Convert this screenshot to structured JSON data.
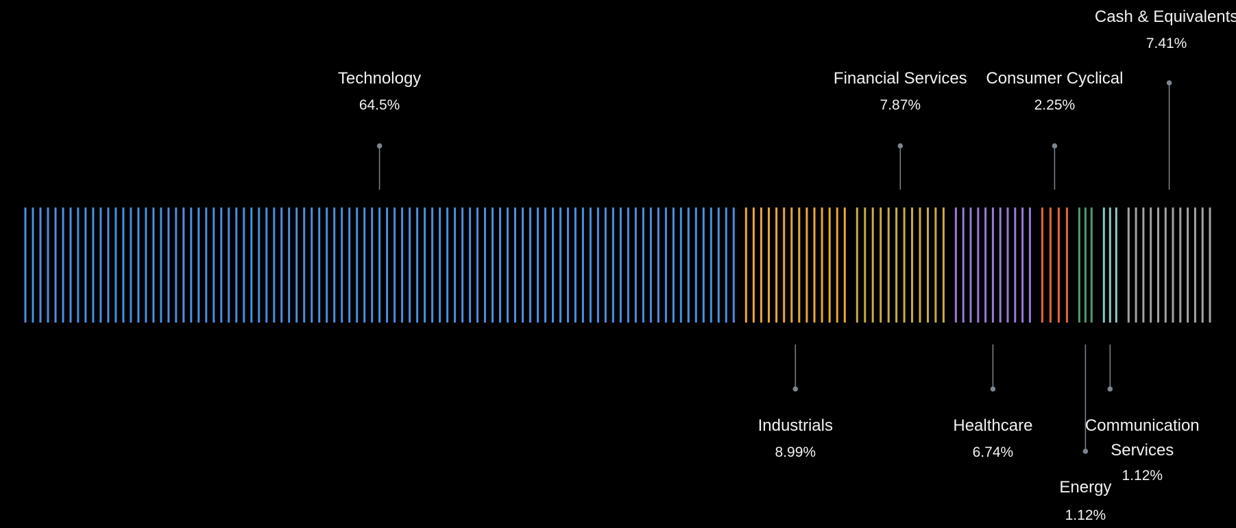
{
  "chart_data": {
    "type": "bar",
    "chart_style": "stacked-barcode",
    "title": "",
    "colors": {
      "background": "#000000",
      "text": "#f2f2f2",
      "leader": "#7d8590"
    },
    "series": [
      {
        "name": "Technology",
        "value_label": "64.5%",
        "value": 64.5,
        "color": "#4a8fe0",
        "label_side": "above",
        "label_level": 1
      },
      {
        "name": "Industrials",
        "value_label": "8.99%",
        "value": 8.99,
        "color": "#e8a838",
        "label_side": "below",
        "label_level": 1
      },
      {
        "name": "Financial Services",
        "value_label": "7.87%",
        "value": 7.87,
        "color": "#c9ad48",
        "label_side": "above",
        "label_level": 1
      },
      {
        "name": "Healthcare",
        "value_label": "6.74%",
        "value": 6.74,
        "color": "#9b7ad6",
        "label_side": "below",
        "label_level": 1
      },
      {
        "name": "Consumer Cyclical",
        "value_label": "2.25%",
        "value": 2.25,
        "color": "#e8663a",
        "label_side": "above",
        "label_level": 1
      },
      {
        "name": "Energy",
        "value_label": "1.12%",
        "value": 1.12,
        "color": "#4f9a6e",
        "label_side": "below",
        "label_level": 2
      },
      {
        "name": "Communication Services",
        "name_lines": [
          "Communication",
          "Services"
        ],
        "value_label": "1.12%",
        "value": 1.12,
        "color": "#8cc8c8",
        "label_side": "below",
        "label_level": 1
      },
      {
        "name": "Cash & Equivalents",
        "value_label": "7.41%",
        "value": 7.41,
        "color": "#a3a3a3",
        "label_side": "above",
        "label_level": 2
      }
    ]
  }
}
